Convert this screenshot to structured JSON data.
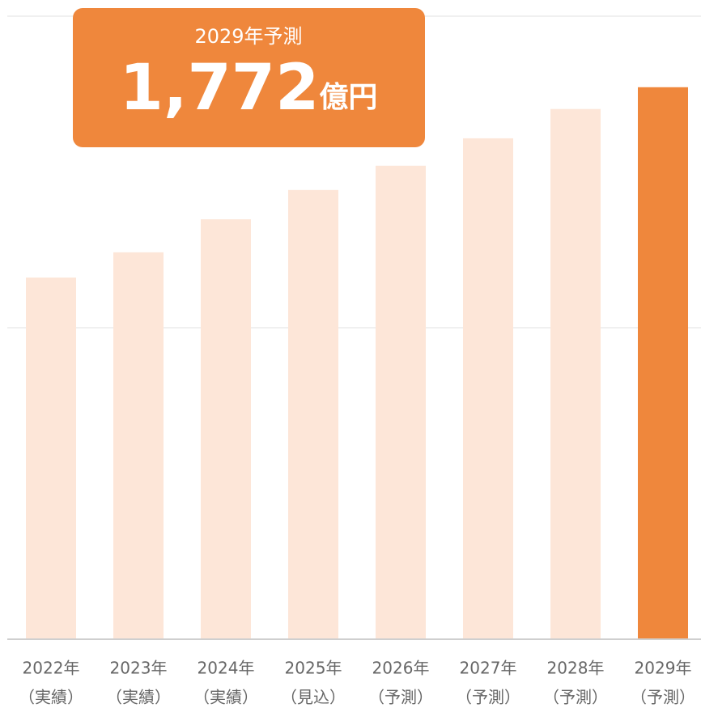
{
  "chart_data": {
    "type": "bar",
    "categories": [
      [
        "2022年",
        "（実績）"
      ],
      [
        "2023年",
        "（実績）"
      ],
      [
        "2024年",
        "（実績）"
      ],
      [
        "2025年",
        "（見込）"
      ],
      [
        "2026年",
        "（予測）"
      ],
      [
        "2027年",
        "（予測）"
      ],
      [
        "2028年",
        "（予測）"
      ],
      [
        "2029年",
        "（予測）"
      ]
    ],
    "values": [
      1161,
      1242,
      1348,
      1442,
      1520,
      1608,
      1702,
      1772
    ],
    "value_labels": [
      null,
      null,
      null,
      null,
      null,
      null,
      null,
      "1,772"
    ],
    "colors": [
      "#fde6d8",
      "#fde6d8",
      "#fde6d8",
      "#fde6d8",
      "#fde6d8",
      "#fde6d8",
      "#fde6d8",
      "#ef873c"
    ],
    "annotation": {
      "title": "2029年予測",
      "unit": "億円"
    },
    "ylim": [
      0,
      2000
    ],
    "yticks": [
      0,
      1000,
      2000
    ],
    "grid": true
  }
}
